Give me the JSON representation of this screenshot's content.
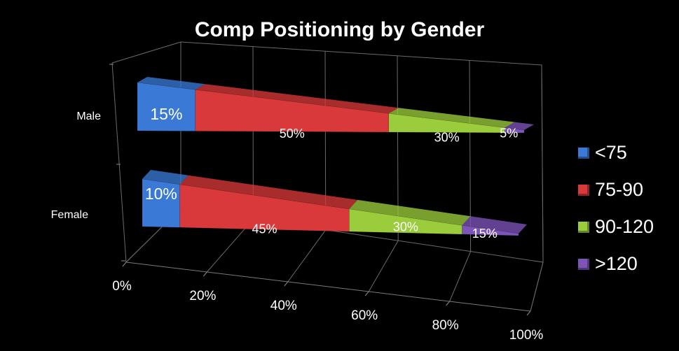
{
  "chart_data": {
    "type": "bar",
    "orientation": "horizontal",
    "stacked": "100%",
    "style": "3d-cone",
    "title": "Comp Positioning by Gender",
    "categories": [
      "Male",
      "Female"
    ],
    "series": [
      {
        "name": "<75",
        "values": [
          15,
          10
        ],
        "labels": [
          "15%",
          "10%"
        ],
        "color": "#3a7ad6"
      },
      {
        "name": "75-90",
        "values": [
          50,
          45
        ],
        "labels": [
          "50%",
          "45%"
        ],
        "color": "#d9393a"
      },
      {
        "name": "90-120",
        "values": [
          30,
          30
        ],
        "labels": [
          "30%",
          "30%"
        ],
        "color": "#9bcc3c"
      },
      {
        "name": ">120",
        "values": [
          5,
          15
        ],
        "labels": [
          "5%",
          "15%"
        ],
        "color": "#7d55b8"
      }
    ],
    "x_ticks": [
      "0%",
      "20%",
      "40%",
      "60%",
      "80%",
      "100%"
    ],
    "xlim": [
      0,
      100
    ],
    "grid": true,
    "legend": "right"
  }
}
